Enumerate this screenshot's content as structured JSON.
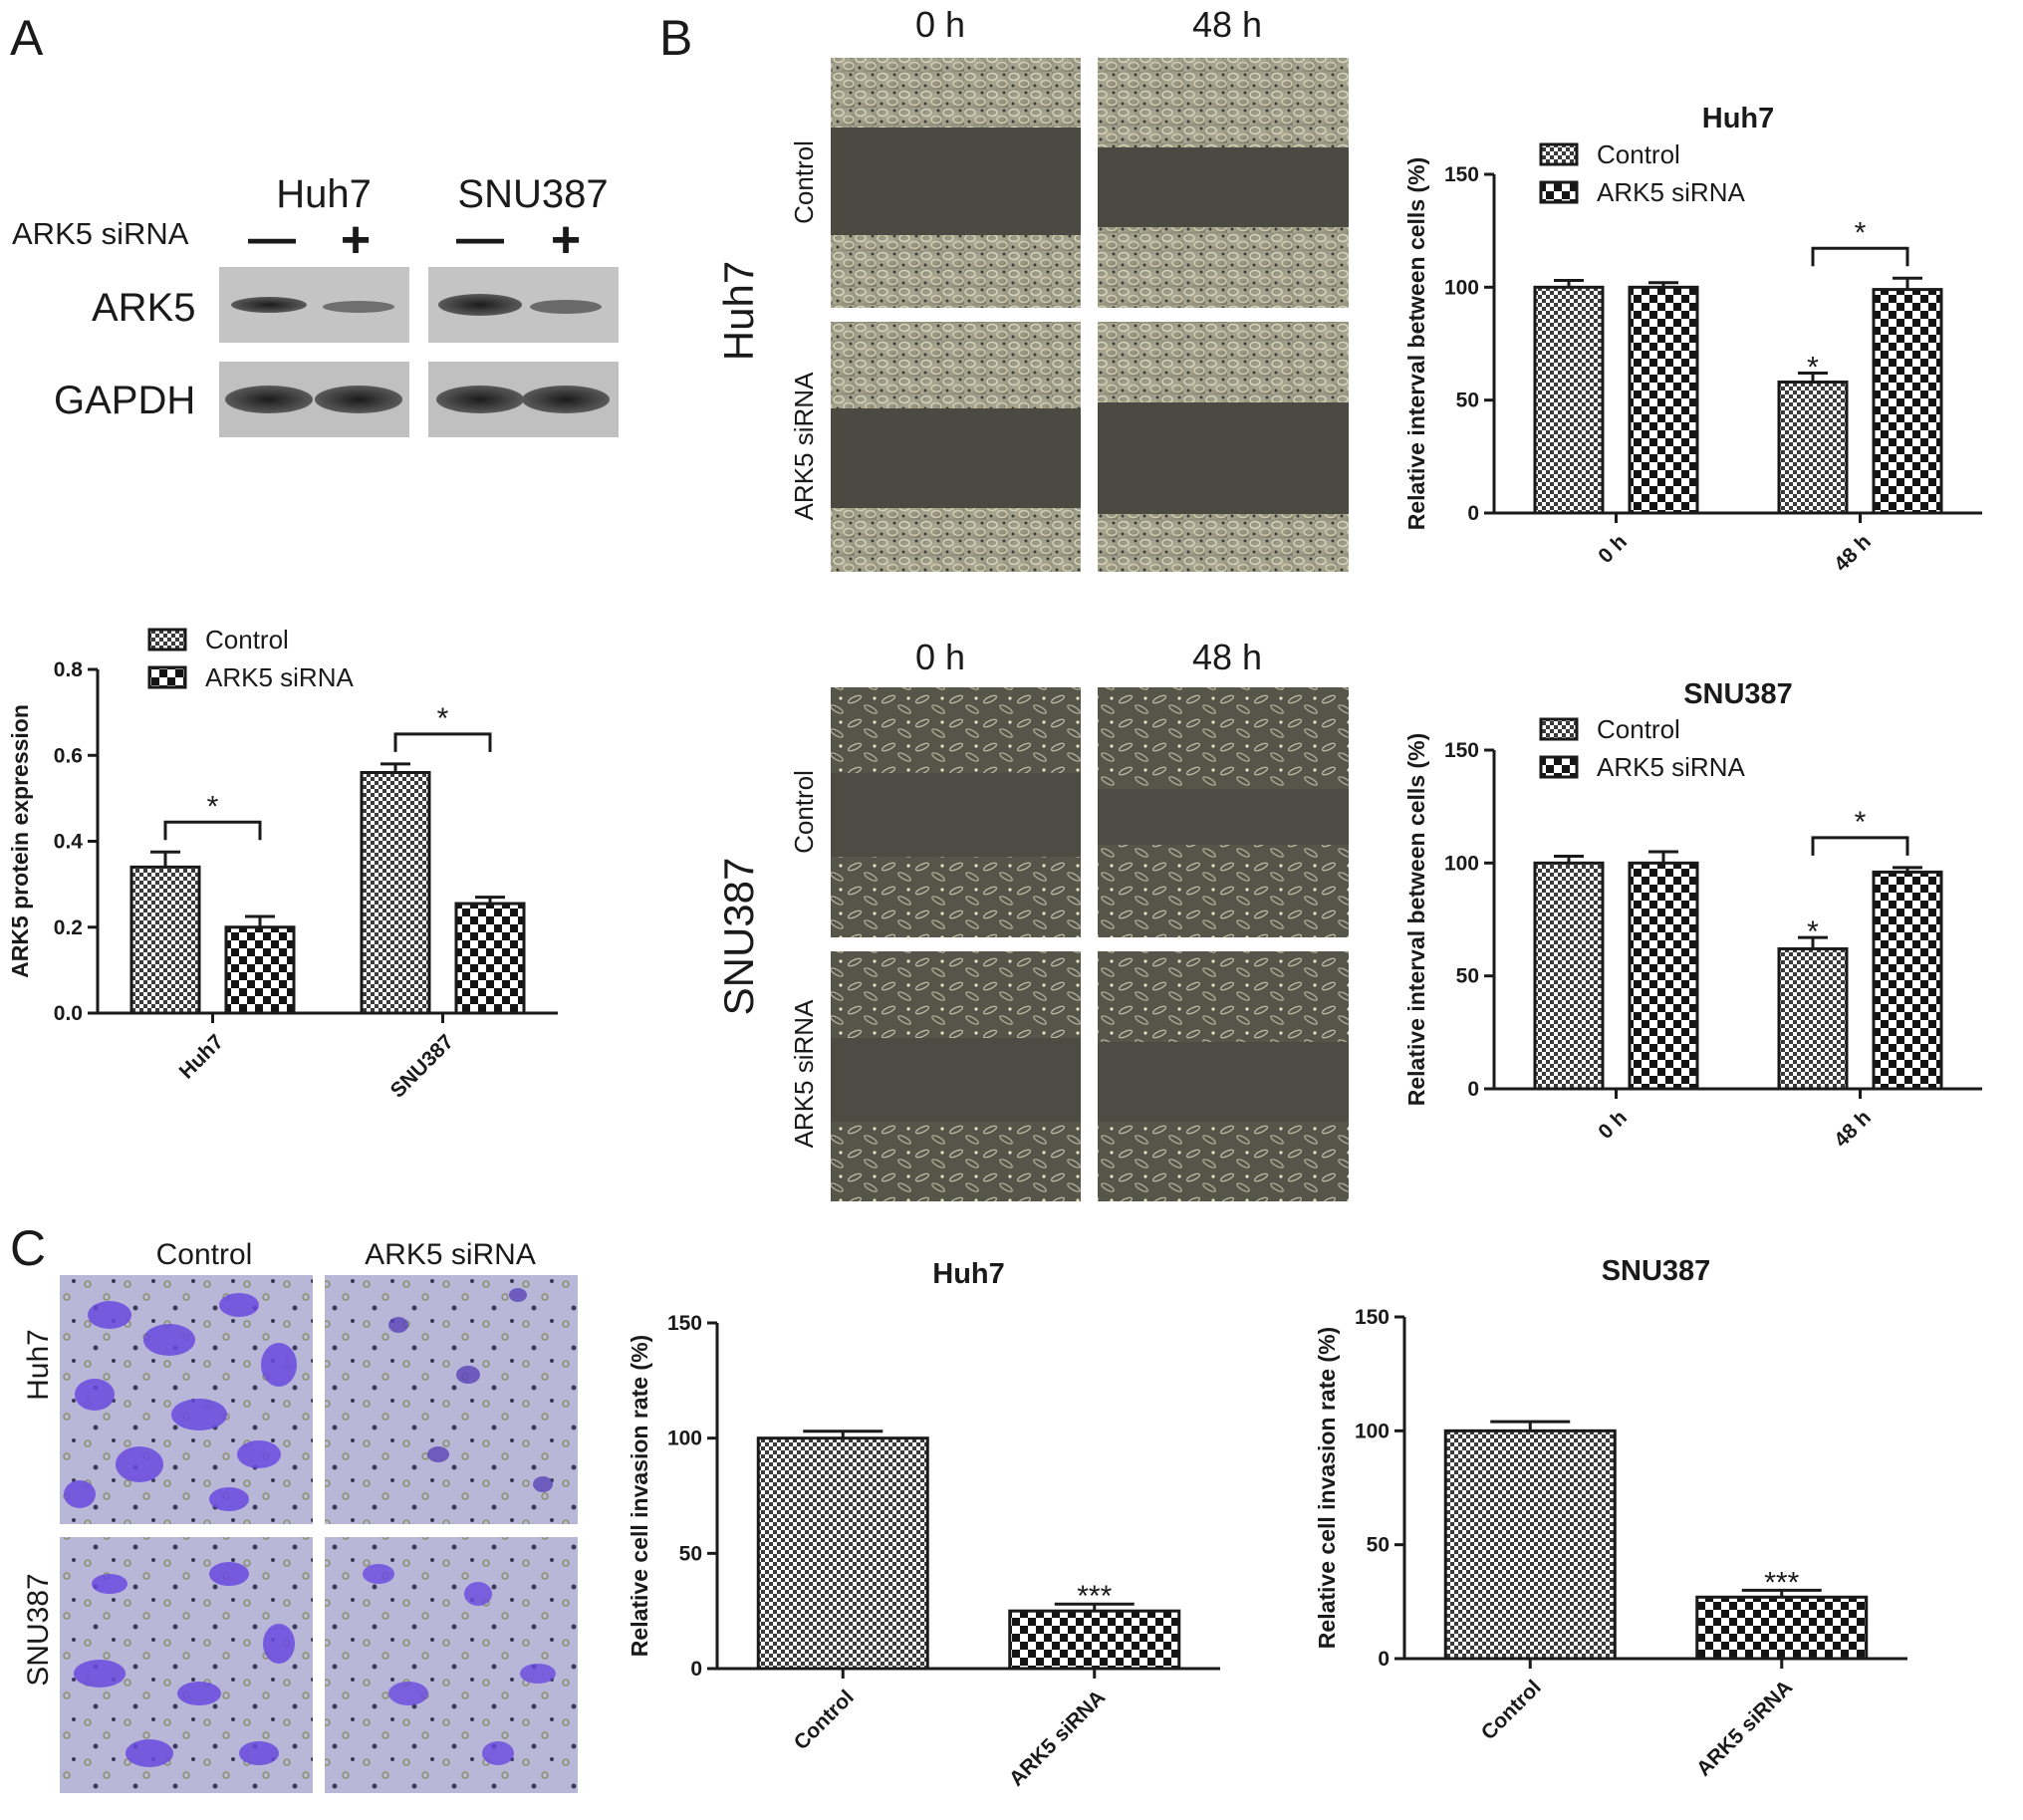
{
  "panel_letters": [
    "A",
    "B",
    "C"
  ],
  "western_blot": {
    "cell_lines": [
      "Huh7",
      "SNU387"
    ],
    "treatment_label": "ARK5 siRNA",
    "lane_signs": [
      "—",
      "+",
      "—",
      "+"
    ],
    "row_labels": [
      "ARK5",
      "GAPDH"
    ]
  },
  "wound_images": {
    "time_labels": [
      "0 h",
      "48 h"
    ],
    "condition_labels": [
      "Control",
      "ARK5 siRNA"
    ],
    "cell_lines": [
      "Huh7",
      "SNU387"
    ]
  },
  "invasion_images": {
    "condition_labels": [
      "Control",
      "ARK5 siRNA"
    ],
    "cell_lines": [
      "Huh7",
      "SNU387"
    ]
  },
  "colors": {
    "ink": "#1a1a1a",
    "stain": "#6a4ae0",
    "micro_bg": "#4a4a42"
  },
  "chart_data": [
    {
      "id": "A-bar",
      "type": "bar",
      "title": "",
      "xlabel": "",
      "ylabel": "ARK5 protein expression",
      "ylim": [
        0,
        0.8
      ],
      "yticks": [
        "0.0",
        "0.2",
        "0.4",
        "0.6",
        "0.8"
      ],
      "categories": [
        "Huh7",
        "SNU387"
      ],
      "legend_position": "top",
      "series": [
        {
          "name": "Control",
          "pattern": "dense",
          "values": [
            0.34,
            0.56
          ],
          "errors": [
            0.035,
            0.02
          ]
        },
        {
          "name": "ARK5 siRNA",
          "pattern": "checker",
          "values": [
            0.2,
            0.255
          ],
          "errors": [
            0.025,
            0.015
          ]
        }
      ],
      "bar_annotations": [],
      "brackets": [
        {
          "category": 0,
          "text": "*"
        },
        {
          "category": 1,
          "text": "*"
        }
      ]
    },
    {
      "id": "B-huh7",
      "type": "bar",
      "title": "Huh7",
      "xlabel": "",
      "ylabel": "Relative interval between cells (%)",
      "ylim": [
        0,
        150
      ],
      "yticks": [
        "0",
        "50",
        "100",
        "150"
      ],
      "categories": [
        "0 h",
        "48 h"
      ],
      "legend_position": "top",
      "series": [
        {
          "name": "Control",
          "pattern": "dense",
          "values": [
            100,
            58
          ],
          "errors": [
            3,
            4
          ]
        },
        {
          "name": "ARK5 siRNA",
          "pattern": "checker",
          "values": [
            100,
            99
          ],
          "errors": [
            2,
            5
          ]
        }
      ],
      "bar_annotations": [
        {
          "series": 0,
          "category": 1,
          "text": "*"
        }
      ],
      "brackets": [
        {
          "category": 1,
          "text": "*"
        }
      ]
    },
    {
      "id": "B-snu387",
      "type": "bar",
      "title": "SNU387",
      "xlabel": "",
      "ylabel": "Relative interval between cells (%)",
      "ylim": [
        0,
        150
      ],
      "yticks": [
        "0",
        "50",
        "100",
        "150"
      ],
      "categories": [
        "0 h",
        "48 h"
      ],
      "legend_position": "top",
      "series": [
        {
          "name": "Control",
          "pattern": "dense",
          "values": [
            100,
            62
          ],
          "errors": [
            3,
            5
          ]
        },
        {
          "name": "ARK5 siRNA",
          "pattern": "checker",
          "values": [
            100,
            96
          ],
          "errors": [
            5,
            2
          ]
        }
      ],
      "bar_annotations": [
        {
          "series": 0,
          "category": 1,
          "text": "*"
        }
      ],
      "brackets": [
        {
          "category": 1,
          "text": "*"
        }
      ]
    },
    {
      "id": "C-huh7",
      "type": "bar",
      "title": "Huh7",
      "xlabel": "",
      "ylabel": "Relative cell invasion rate (%)",
      "ylim": [
        0,
        150
      ],
      "yticks": [
        "0",
        "50",
        "100",
        "150"
      ],
      "categories": [
        "Control",
        "ARK5 siRNA"
      ],
      "bar_patterns": [
        "dense",
        "checker"
      ],
      "values": [
        100,
        25
      ],
      "errors": [
        3,
        3
      ],
      "bar_annotations": [
        {
          "category": 1,
          "text": "***"
        }
      ]
    },
    {
      "id": "C-snu387",
      "type": "bar",
      "title": "SNU387",
      "xlabel": "",
      "ylabel": "Relative cell invasion rate (%)",
      "ylim": [
        0,
        150
      ],
      "yticks": [
        "0",
        "50",
        "100",
        "150"
      ],
      "categories": [
        "Control",
        "ARK5 siRNA"
      ],
      "bar_patterns": [
        "dense",
        "checker"
      ],
      "values": [
        100,
        27
      ],
      "errors": [
        4,
        3
      ],
      "bar_annotations": [
        {
          "category": 1,
          "text": "***"
        }
      ]
    }
  ]
}
